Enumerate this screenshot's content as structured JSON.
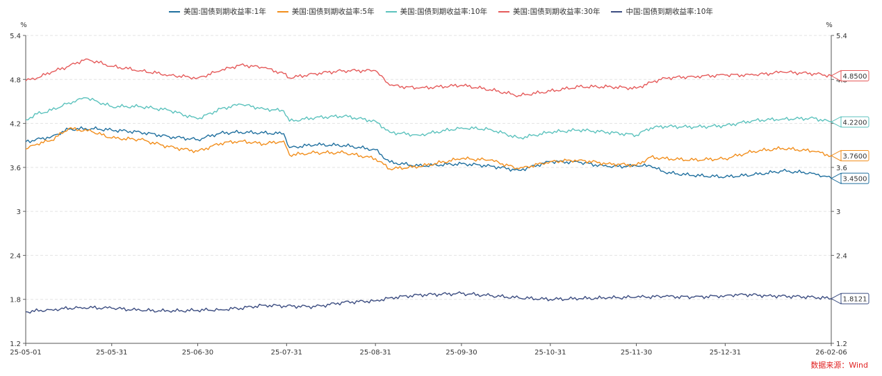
{
  "legend": [
    {
      "name": "美国:国债到期收益率:1年",
      "color": "#1f6f9e"
    },
    {
      "name": "美国:国债到期收益率:5年",
      "color": "#f28e1c"
    },
    {
      "name": "美国:国债到期收益率:10年",
      "color": "#5bc2bd"
    },
    {
      "name": "美国:国债到期收益率:30年",
      "color": "#e55a5a"
    },
    {
      "name": "中国:国债到期收益率:10年",
      "color": "#3b4c80"
    }
  ],
  "source": "数据来源：Wind",
  "chart_data": {
    "type": "line",
    "x_ticks": [
      "25-05-01",
      "25-05-31",
      "25-06-30",
      "25-07-31",
      "25-08-31",
      "25-09-30",
      "25-10-31",
      "25-11-30",
      "25-12-31",
      "26-02-06"
    ],
    "y_unit_left": "%",
    "y_unit_right": "%",
    "ylim": [
      1.2,
      5.4
    ],
    "y_ticks_left": [
      "5.4",
      "4.8",
      "4.2",
      "3.6",
      "3",
      "2.4",
      "1.8",
      "1.2"
    ],
    "y_ticks_right": [
      "5.4",
      "4.8",
      "4.2",
      "3.6",
      "3",
      "2.4",
      "1.8",
      "1.2"
    ],
    "grid": true,
    "legend_position": "top",
    "series": [
      {
        "name": "美国:国债到期收益率:1年",
        "color": "#1f6f9e",
        "end_label": "3.4500",
        "points": [
          [
            "25-05-01",
            3.95
          ],
          [
            "25-05-10",
            4.02
          ],
          [
            "25-05-16",
            4.12
          ],
          [
            "25-05-24",
            4.13
          ],
          [
            "25-05-31",
            4.11
          ],
          [
            "25-06-10",
            4.08
          ],
          [
            "25-06-20",
            4.02
          ],
          [
            "25-06-30",
            3.98
          ],
          [
            "25-07-08",
            4.07
          ],
          [
            "25-07-15",
            4.08
          ],
          [
            "25-07-23",
            4.07
          ],
          [
            "25-07-30",
            4.06
          ],
          [
            "25-08-01",
            3.87
          ],
          [
            "25-08-10",
            3.91
          ],
          [
            "25-08-20",
            3.9
          ],
          [
            "25-08-31",
            3.84
          ],
          [
            "25-09-05",
            3.67
          ],
          [
            "25-09-15",
            3.62
          ],
          [
            "25-09-30",
            3.65
          ],
          [
            "25-10-10",
            3.62
          ],
          [
            "25-10-20",
            3.56
          ],
          [
            "25-10-31",
            3.68
          ],
          [
            "25-11-10",
            3.67
          ],
          [
            "25-11-20",
            3.61
          ],
          [
            "25-11-30",
            3.62
          ],
          [
            "25-12-05",
            3.62
          ],
          [
            "25-12-10",
            3.53
          ],
          [
            "25-12-20",
            3.49
          ],
          [
            "25-12-31",
            3.47
          ],
          [
            "26-01-10",
            3.5
          ],
          [
            "26-01-20",
            3.55
          ],
          [
            "26-01-31",
            3.52
          ],
          [
            "26-02-06",
            3.45
          ]
        ]
      },
      {
        "name": "美国:国债到期收益率:5年",
        "color": "#f28e1c",
        "end_label": "3.7600",
        "points": [
          [
            "25-05-01",
            3.85
          ],
          [
            "25-05-05",
            3.92
          ],
          [
            "25-05-10",
            3.97
          ],
          [
            "25-05-16",
            4.13
          ],
          [
            "25-05-24",
            4.09
          ],
          [
            "25-05-31",
            4.0
          ],
          [
            "25-06-10",
            3.98
          ],
          [
            "25-06-20",
            3.88
          ],
          [
            "25-06-30",
            3.82
          ],
          [
            "25-07-08",
            3.93
          ],
          [
            "25-07-15",
            3.96
          ],
          [
            "25-07-23",
            3.92
          ],
          [
            "25-07-30",
            3.96
          ],
          [
            "25-08-01",
            3.77
          ],
          [
            "25-08-10",
            3.8
          ],
          [
            "25-08-20",
            3.8
          ],
          [
            "25-08-31",
            3.72
          ],
          [
            "25-09-05",
            3.58
          ],
          [
            "25-09-15",
            3.61
          ],
          [
            "25-09-30",
            3.72
          ],
          [
            "25-10-10",
            3.7
          ],
          [
            "25-10-20",
            3.58
          ],
          [
            "25-10-31",
            3.68
          ],
          [
            "25-11-10",
            3.7
          ],
          [
            "25-11-20",
            3.65
          ],
          [
            "25-11-30",
            3.63
          ],
          [
            "25-12-05",
            3.74
          ],
          [
            "25-12-10",
            3.72
          ],
          [
            "25-12-20",
            3.7
          ],
          [
            "25-12-31",
            3.72
          ],
          [
            "26-01-10",
            3.82
          ],
          [
            "26-01-20",
            3.86
          ],
          [
            "26-01-31",
            3.82
          ],
          [
            "26-02-06",
            3.76
          ]
        ]
      },
      {
        "name": "美国:国债到期收益率:10年",
        "color": "#5bc2bd",
        "end_label": "4.2200",
        "points": [
          [
            "25-05-01",
            4.25
          ],
          [
            "25-05-05",
            4.33
          ],
          [
            "25-05-10",
            4.38
          ],
          [
            "25-05-16",
            4.48
          ],
          [
            "25-05-22",
            4.55
          ],
          [
            "25-05-31",
            4.43
          ],
          [
            "25-06-10",
            4.43
          ],
          [
            "25-06-20",
            4.38
          ],
          [
            "25-06-30",
            4.26
          ],
          [
            "25-07-08",
            4.4
          ],
          [
            "25-07-15",
            4.46
          ],
          [
            "25-07-23",
            4.4
          ],
          [
            "25-07-30",
            4.37
          ],
          [
            "25-08-01",
            4.23
          ],
          [
            "25-08-10",
            4.28
          ],
          [
            "25-08-20",
            4.3
          ],
          [
            "25-08-31",
            4.23
          ],
          [
            "25-09-05",
            4.08
          ],
          [
            "25-09-15",
            4.04
          ],
          [
            "25-09-30",
            4.14
          ],
          [
            "25-10-10",
            4.12
          ],
          [
            "25-10-20",
            4.0
          ],
          [
            "25-10-31",
            4.08
          ],
          [
            "25-11-10",
            4.11
          ],
          [
            "25-11-20",
            4.08
          ],
          [
            "25-11-30",
            4.04
          ],
          [
            "25-12-05",
            4.14
          ],
          [
            "25-12-10",
            4.16
          ],
          [
            "25-12-20",
            4.15
          ],
          [
            "25-12-31",
            4.17
          ],
          [
            "26-01-10",
            4.24
          ],
          [
            "26-01-20",
            4.26
          ],
          [
            "26-01-31",
            4.27
          ],
          [
            "26-02-06",
            4.22
          ]
        ]
      },
      {
        "name": "美国:国债到期收益率:30年",
        "color": "#e55a5a",
        "end_label": "4.8500",
        "points": [
          [
            "25-05-01",
            4.78
          ],
          [
            "25-05-05",
            4.82
          ],
          [
            "25-05-10",
            4.9
          ],
          [
            "25-05-16",
            4.98
          ],
          [
            "25-05-22",
            5.08
          ],
          [
            "25-05-31",
            4.98
          ],
          [
            "25-06-10",
            4.92
          ],
          [
            "25-06-20",
            4.86
          ],
          [
            "25-06-30",
            4.82
          ],
          [
            "25-07-08",
            4.92
          ],
          [
            "25-07-15",
            5.0
          ],
          [
            "25-07-23",
            4.96
          ],
          [
            "25-07-30",
            4.88
          ],
          [
            "25-08-01",
            4.82
          ],
          [
            "25-08-10",
            4.88
          ],
          [
            "25-08-20",
            4.92
          ],
          [
            "25-08-31",
            4.92
          ],
          [
            "25-09-05",
            4.72
          ],
          [
            "25-09-15",
            4.68
          ],
          [
            "25-09-30",
            4.72
          ],
          [
            "25-10-10",
            4.66
          ],
          [
            "25-10-20",
            4.58
          ],
          [
            "25-10-31",
            4.64
          ],
          [
            "25-11-10",
            4.7
          ],
          [
            "25-11-20",
            4.7
          ],
          [
            "25-11-30",
            4.68
          ],
          [
            "25-12-05",
            4.76
          ],
          [
            "25-12-10",
            4.82
          ],
          [
            "25-12-20",
            4.84
          ],
          [
            "25-12-31",
            4.86
          ],
          [
            "26-01-10",
            4.86
          ],
          [
            "26-01-20",
            4.9
          ],
          [
            "26-01-31",
            4.88
          ],
          [
            "26-02-06",
            4.85
          ]
        ]
      },
      {
        "name": "中国:国债到期收益率:10年",
        "color": "#3b4c80",
        "end_label": "1.8121",
        "points": [
          [
            "25-05-01",
            1.63
          ],
          [
            "25-05-10",
            1.66
          ],
          [
            "25-05-20",
            1.69
          ],
          [
            "25-05-31",
            1.68
          ],
          [
            "25-06-10",
            1.65
          ],
          [
            "25-06-20",
            1.64
          ],
          [
            "25-06-30",
            1.65
          ],
          [
            "25-07-08",
            1.66
          ],
          [
            "25-07-15",
            1.68
          ],
          [
            "25-07-23",
            1.72
          ],
          [
            "25-07-30",
            1.71
          ],
          [
            "25-08-10",
            1.7
          ],
          [
            "25-08-20",
            1.76
          ],
          [
            "25-08-31",
            1.78
          ],
          [
            "25-09-05",
            1.82
          ],
          [
            "25-09-15",
            1.86
          ],
          [
            "25-09-30",
            1.88
          ],
          [
            "25-10-10",
            1.85
          ],
          [
            "25-10-20",
            1.82
          ],
          [
            "25-10-31",
            1.8
          ],
          [
            "25-11-10",
            1.81
          ],
          [
            "25-11-20",
            1.82
          ],
          [
            "25-11-30",
            1.83
          ],
          [
            "25-12-10",
            1.84
          ],
          [
            "25-12-20",
            1.83
          ],
          [
            "25-12-31",
            1.85
          ],
          [
            "26-01-05",
            1.87
          ],
          [
            "26-01-15",
            1.85
          ],
          [
            "26-01-31",
            1.83
          ],
          [
            "26-02-06",
            1.81
          ]
        ]
      }
    ]
  }
}
